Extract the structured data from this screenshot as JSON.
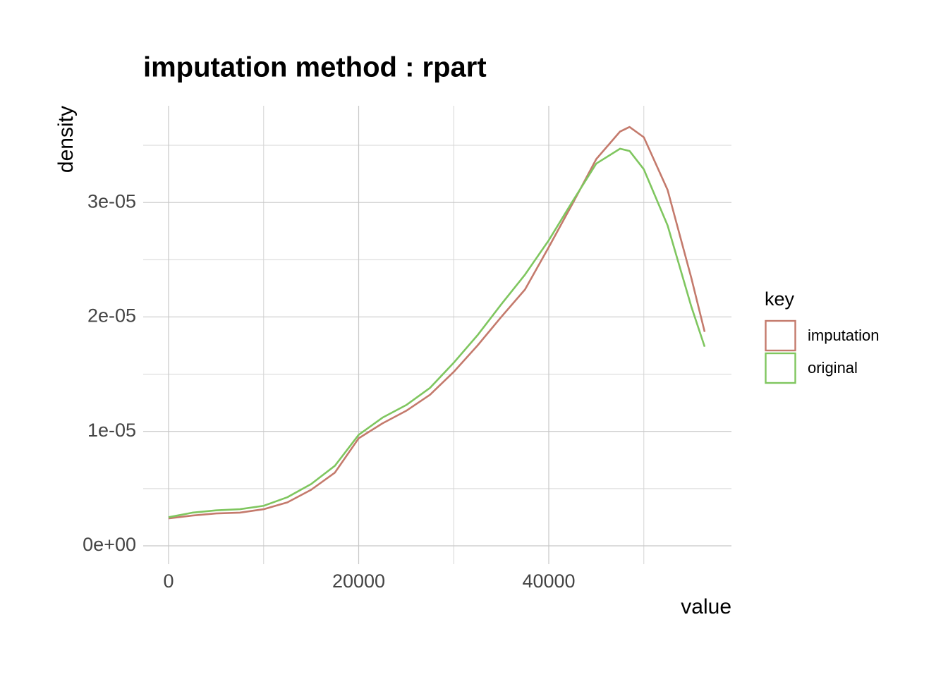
{
  "chart_data": {
    "type": "line",
    "title": "imputation method : rpart",
    "x_label": "value",
    "y_label": "density",
    "legend_title": "key",
    "legend": "right",
    "grid": true,
    "xlim": [
      -2672,
      59220
    ],
    "ylim": [
      -1.6e-06,
      3.845e-05
    ],
    "xticks": [
      0,
      20000,
      40000
    ],
    "yticks": [
      {
        "value": 0,
        "label": "0e+00"
      },
      {
        "value": 1e-05,
        "label": "1e-05"
      },
      {
        "value": 2e-05,
        "label": "2e-05"
      },
      {
        "value": 3e-05,
        "label": "3e-05"
      }
    ],
    "x": [
      0,
      2500,
      5000,
      7500,
      10000,
      12500,
      15000,
      17500,
      20000,
      22500,
      25000,
      27500,
      30000,
      32500,
      35000,
      37500,
      40000,
      42500,
      45000,
      47500,
      48500,
      50000,
      52500,
      55000,
      56400
    ],
    "series": [
      {
        "name": "imputation",
        "color": "#c47a6c",
        "values": [
          2.4e-06,
          2.65e-06,
          2.83e-06,
          2.9e-06,
          3.2e-06,
          3.8e-06,
          4.9e-06,
          6.4e-06,
          9.4e-06,
          1.07e-05,
          1.18e-05,
          1.32e-05,
          1.52e-05,
          1.75e-05,
          2e-05,
          2.24e-05,
          2.61e-05,
          2.99e-05,
          3.38e-05,
          3.62e-05,
          3.66e-05,
          3.57e-05,
          3.11e-05,
          2.34e-05,
          1.87e-05
        ]
      },
      {
        "name": "original",
        "color": "#7fc65f",
        "values": [
          2.5e-06,
          2.9e-06,
          3.1e-06,
          3.2e-06,
          3.5e-06,
          4.25e-06,
          5.4e-06,
          7e-06,
          9.7e-06,
          1.12e-05,
          1.23e-05,
          1.38e-05,
          1.6e-05,
          1.84e-05,
          2.11e-05,
          2.37e-05,
          2.67e-05,
          3.01e-05,
          3.34e-05,
          3.47e-05,
          3.45e-05,
          3.29e-05,
          2.8e-05,
          2.09e-05,
          1.74e-05
        ]
      }
    ]
  }
}
